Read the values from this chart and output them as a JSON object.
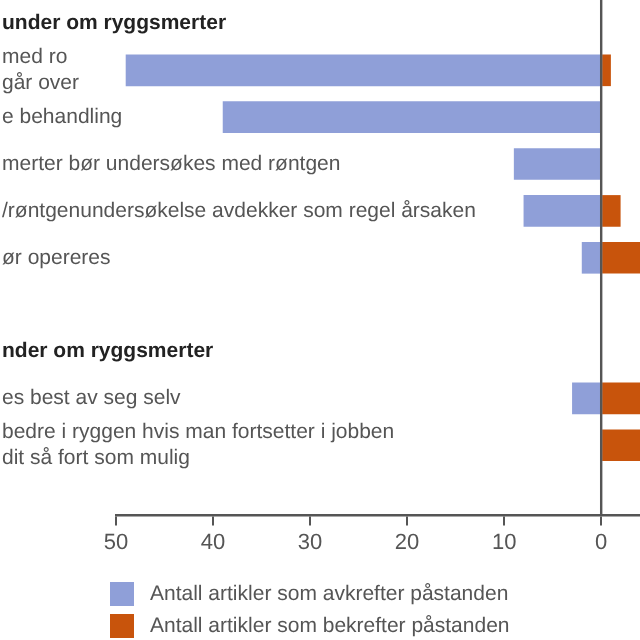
{
  "chart_data": {
    "type": "bar",
    "orientation": "horizontal",
    "stacked": true,
    "categories": [
      "under om ryggsmerter",
      "med ro\ngår over",
      "e behandling",
      "merter bør undersøkes med røntgen",
      "/røntgenundersøkelse avdekker som regel årsaken",
      "ør opereres",
      null,
      "nder om ryggsmerter",
      "es best av seg selv",
      "bedre i ryggen hvis man fortsetter i jobben\ndit så fort som mulig",
      null
    ],
    "series": [
      {
        "name": "Antall artikler som avkrefter påstanden",
        "color": "#8f9fd8",
        "values": [
          null,
          49,
          39,
          9,
          8,
          2,
          null,
          null,
          3,
          null,
          null
        ]
      },
      {
        "name": "Antall artikler som bekrefter påstanden",
        "color": "#c8540c",
        "values": [
          null,
          -1,
          null,
          null,
          -2,
          -4,
          null,
          null,
          -4,
          -4,
          null
        ]
      }
    ],
    "xlim": [
      50,
      -4
    ],
    "xticks": [
      50,
      40,
      30,
      20,
      10,
      0
    ],
    "ref_lines": [
      {
        "axis": "x",
        "value": 0,
        "color": "#555555"
      }
    ],
    "grid": false,
    "legend": "bottom"
  }
}
